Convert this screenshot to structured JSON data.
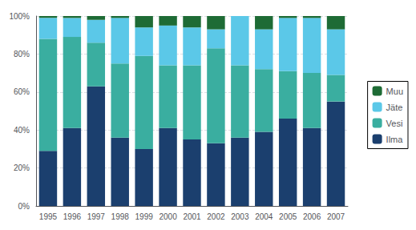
{
  "chart_data": {
    "type": "bar",
    "stacked": true,
    "categories": [
      "1995",
      "1996",
      "1997",
      "1998",
      "1999",
      "2000",
      "2001",
      "2002",
      "2003",
      "2004",
      "2005",
      "2006",
      "2007"
    ],
    "series": [
      {
        "name": "Ilma",
        "color": "#1B3F6E",
        "values": [
          29,
          41,
          63,
          36,
          30,
          41,
          35,
          33,
          36,
          39,
          46,
          41,
          55
        ]
      },
      {
        "name": "Vesi",
        "color": "#3AAEA0",
        "values": [
          59,
          48,
          23,
          39,
          49,
          33,
          39,
          50,
          38,
          33,
          25,
          29,
          14
        ]
      },
      {
        "name": "Jäte",
        "color": "#5BC8E8",
        "values": [
          11,
          10,
          12,
          24,
          15,
          21,
          20,
          10,
          26,
          21,
          28,
          29,
          24
        ]
      },
      {
        "name": "Muu",
        "color": "#1E6B35",
        "values": [
          1,
          1,
          2,
          1,
          6,
          5,
          6,
          7,
          0,
          7,
          1,
          1,
          7
        ]
      }
    ],
    "ylim": [
      0,
      100
    ],
    "yticks": [
      {
        "value": 0,
        "label": "0%"
      },
      {
        "value": 20,
        "label": "20%"
      },
      {
        "value": 40,
        "label": "40%"
      },
      {
        "value": 60,
        "label": "60%"
      },
      {
        "value": 80,
        "label": "80%"
      },
      {
        "value": 100,
        "label": "100%"
      }
    ],
    "grid": true,
    "legend": "right"
  }
}
